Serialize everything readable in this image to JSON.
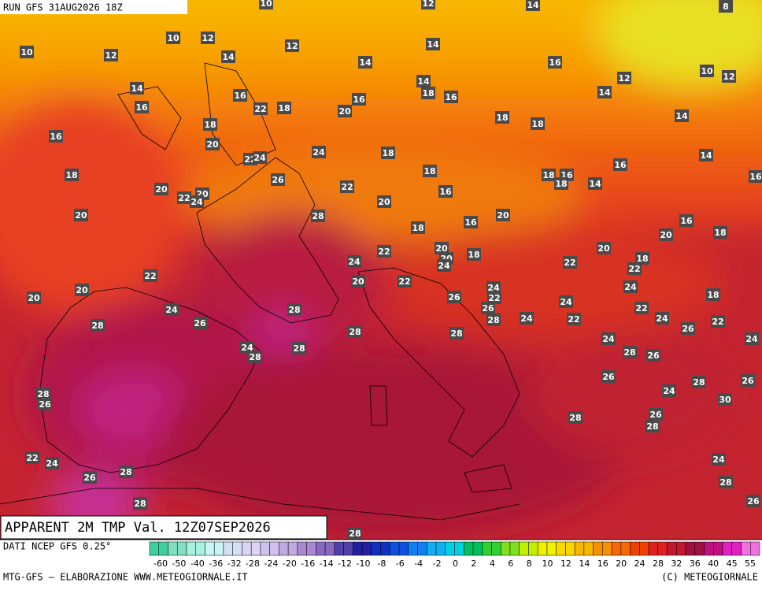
{
  "header": {
    "run": "RUN GFS 31AUG2026 18Z"
  },
  "title": "APPARENT 2M TMP Val. 12Z07SEP2026",
  "map": {
    "labels": [
      10,
      12,
      14,
      8,
      10,
      12,
      10,
      12,
      14,
      12,
      14,
      14,
      16,
      12,
      10,
      12,
      14,
      16,
      16,
      22,
      18,
      14,
      18,
      16,
      16,
      20,
      14,
      18,
      18,
      14,
      18,
      16,
      20,
      24,
      22,
      24,
      18,
      14,
      16,
      18,
      26,
      18,
      18,
      16,
      18,
      14,
      16,
      20,
      22,
      16,
      22,
      20,
      24,
      20,
      20,
      28,
      16,
      20,
      16,
      18,
      18,
      20,
      20,
      22,
      20,
      18,
      24,
      20,
      24,
      22,
      18,
      22,
      22,
      20,
      22,
      24,
      24,
      20,
      20,
      22,
      26,
      24,
      18,
      24,
      28,
      22,
      26,
      28,
      24,
      22,
      24,
      22,
      28,
      26,
      28,
      28,
      26,
      24,
      24,
      24,
      28,
      28,
      26,
      28,
      26,
      28,
      26,
      24,
      28,
      26,
      30,
      28,
      26,
      28,
      22,
      24,
      24,
      28,
      26,
      28,
      28,
      26,
      28
    ]
  },
  "legend": {
    "ticks": [
      -60,
      -50,
      -40,
      -36,
      -32,
      -28,
      -24,
      -20,
      -16,
      -14,
      -12,
      -10,
      -8,
      -6,
      -4,
      -2,
      0,
      2,
      4,
      6,
      8,
      10,
      12,
      14,
      16,
      20,
      24,
      28,
      32,
      36,
      40,
      45,
      55
    ],
    "colors": [
      "#40d0a0",
      "#80e0c0",
      "#a8f0e0",
      "#c8f4f4",
      "#d4e0f4",
      "#dcd4f4",
      "#d0c0ec",
      "#c0a8e0",
      "#a888d0",
      "#8868c0",
      "#5040a8",
      "#2020a0",
      "#1030c0",
      "#1050e0",
      "#1080f0",
      "#10b0f0",
      "#00d0e0",
      "#00c060",
      "#30d030",
      "#80e020",
      "#c0f000",
      "#f0f000",
      "#f8d800",
      "#f8b800",
      "#f89000",
      "#f86800",
      "#f04000",
      "#e02020",
      "#c01830",
      "#a01040",
      "#c01080",
      "#e020c0",
      "#f070e0"
    ]
  },
  "footer": {
    "source": "DATI NCEP GFS 0.25°",
    "credit": "MTG-GFS — ELABORAZIONE WWW.METEOGIORNALE.IT",
    "copyright": "(C) METEOGIORNALE"
  }
}
